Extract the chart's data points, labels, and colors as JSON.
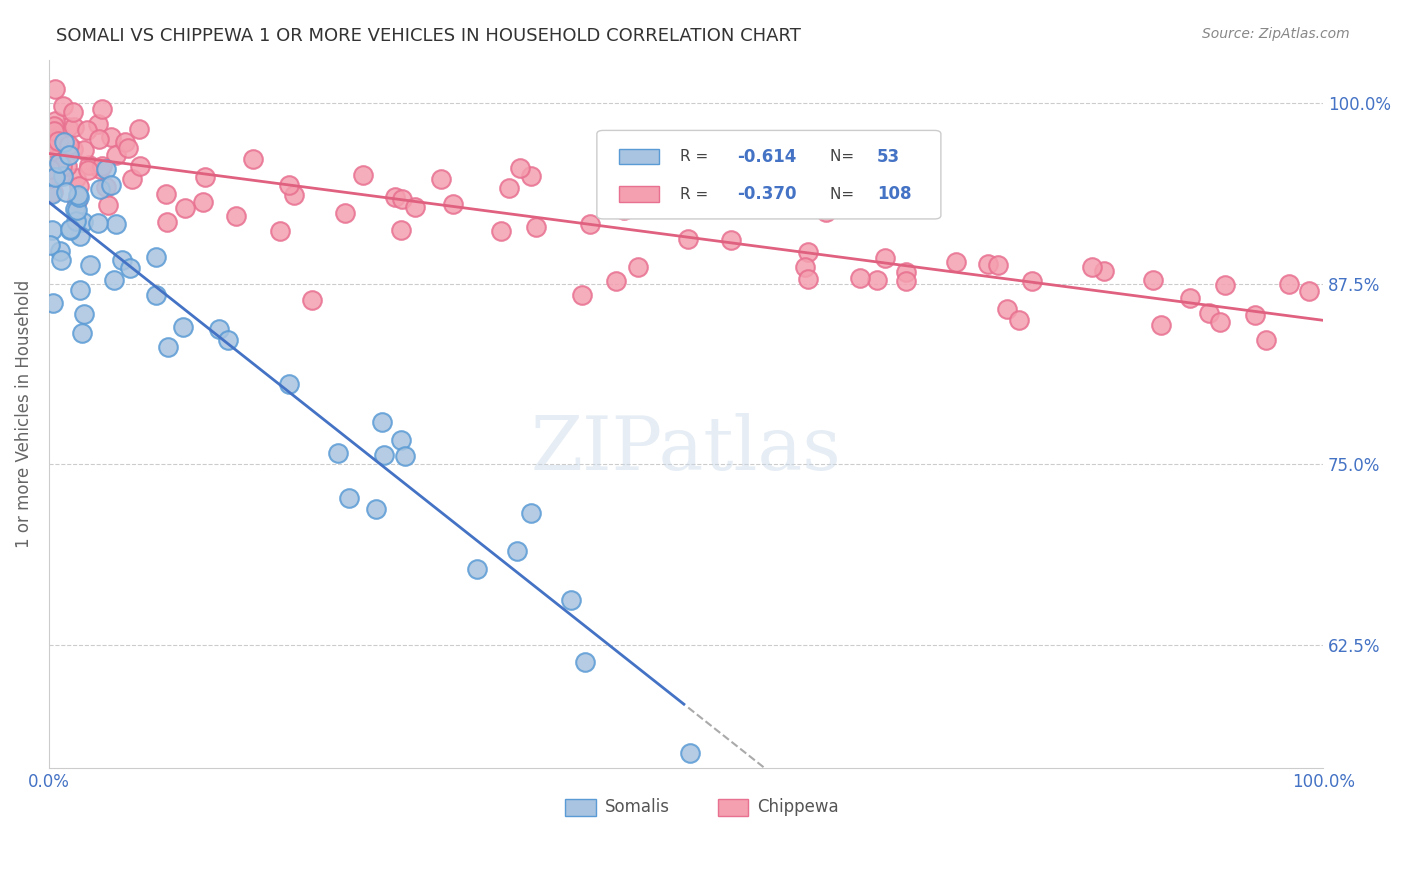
{
  "title": "SOMALI VS CHIPPEWA 1 OR MORE VEHICLES IN HOUSEHOLD CORRELATION CHART",
  "source": "Source: ZipAtlas.com",
  "ylabel": "1 or more Vehicles in Household",
  "ytick_labels": [
    "62.5%",
    "75.0%",
    "87.5%",
    "100.0%"
  ],
  "ytick_values": [
    0.625,
    0.75,
    0.875,
    1.0
  ],
  "xlim": [
    0.0,
    1.0
  ],
  "ylim": [
    0.54,
    1.03
  ],
  "somali_R": "-0.614",
  "somali_N": "53",
  "chippewa_R": "-0.370",
  "chippewa_N": "108",
  "somali_color": "#a8c4e0",
  "chippewa_color": "#f4a0b0",
  "somali_edge": "#5b9bd5",
  "chippewa_edge": "#e87090",
  "trend_somali_color": "#4472c4",
  "trend_chippewa_color": "#e06080",
  "watermark_text": "ZIPatlas",
  "legend_R_color": "#4472c4",
  "legend_N_color": "#4472c4",
  "axis_label_color": "#4472c4",
  "ylabel_color": "#666666",
  "title_color": "#333333",
  "source_color": "#888888",
  "grid_color": "#cccccc",
  "dashed_extend_color": "#aaaaaa"
}
